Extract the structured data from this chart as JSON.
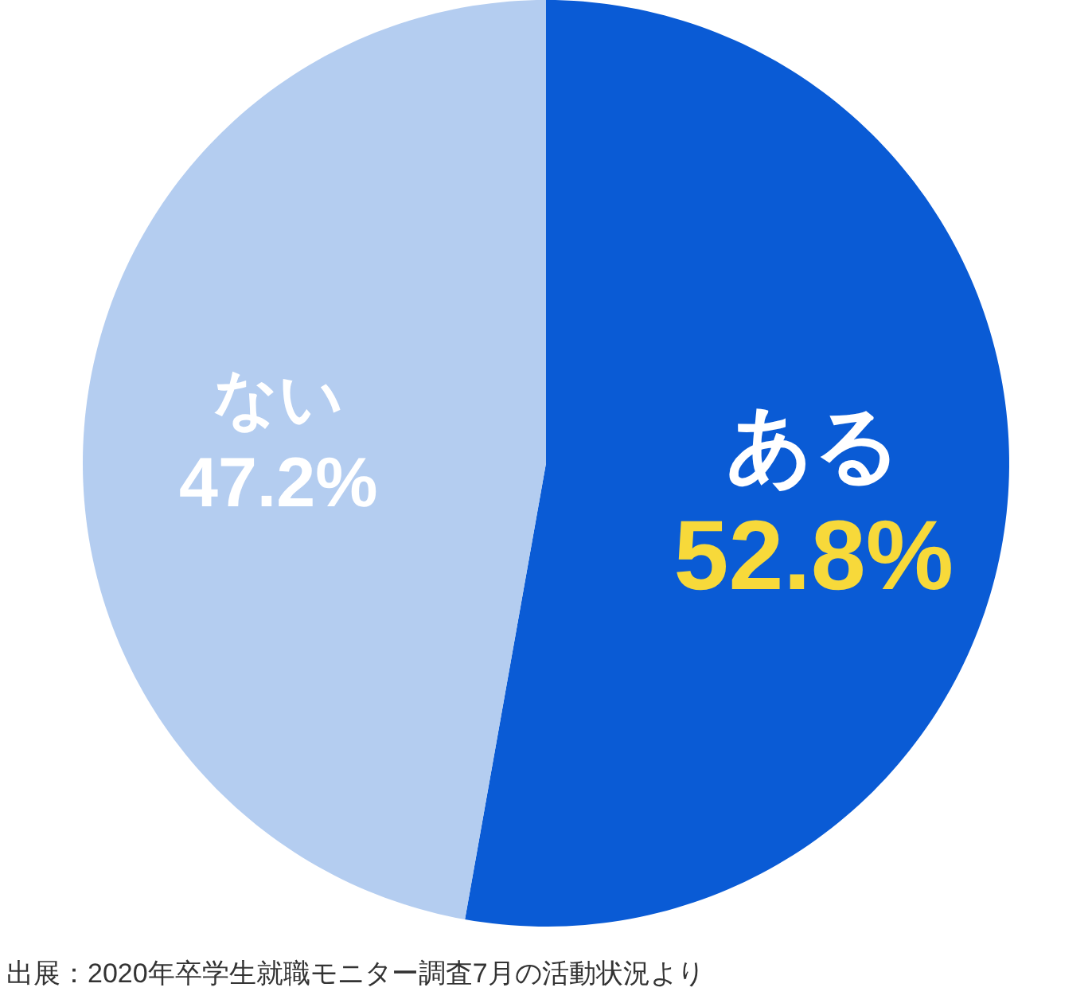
{
  "chart_data": {
    "type": "pie",
    "categories": [
      "ある",
      "ない"
    ],
    "values": [
      52.8,
      47.2
    ],
    "colors": [
      "#0a5bd5",
      "#b4cdf0"
    ],
    "value_labels": [
      "52.8%",
      "47.2%"
    ],
    "legend": false,
    "annotations": [
      "出展：2020年卒学生就職モニター調査7月の活動状況より"
    ]
  }
}
